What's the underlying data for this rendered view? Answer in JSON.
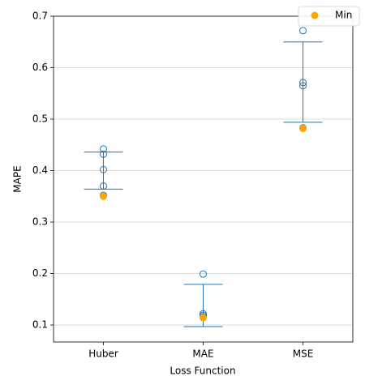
{
  "chart_data": {
    "type": "errorbar",
    "xlabel": "Loss Function",
    "ylabel": "MAPE",
    "categories": [
      "Huber",
      "MAE",
      "MSE"
    ],
    "ylim": [
      0.067,
      0.7
    ],
    "yticks": [
      0.1,
      0.2,
      0.3,
      0.4,
      0.5,
      0.6,
      0.7
    ],
    "grid": true,
    "legend": "upper right",
    "errorbar": {
      "color": "#1f77b4",
      "values": [
        0.4,
        0.138,
        0.572
      ],
      "errors": [
        0.036,
        0.041,
        0.078
      ]
    },
    "observations": {
      "color": "#1f77b4",
      "values": [
        [
          0.442,
          0.432,
          0.402,
          0.37,
          0.352
        ],
        [
          0.199,
          0.122,
          0.119,
          0.116
        ],
        [
          0.672,
          0.571,
          0.565,
          0.483
        ]
      ]
    },
    "series": [
      {
        "name": "Min",
        "color": "#ffa500",
        "values": [
          0.35,
          0.114,
          0.482
        ]
      }
    ]
  }
}
